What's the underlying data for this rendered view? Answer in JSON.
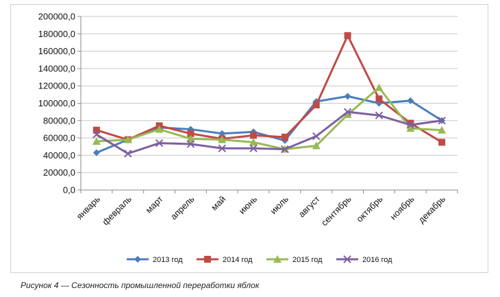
{
  "caption": "Рисунок 4 — Сезонность промышленной переработки яблок",
  "chart_data": {
    "type": "line",
    "categories": [
      "январь",
      "февраль",
      "март",
      "апрель",
      "май",
      "июнь",
      "июль",
      "август",
      "сентябрь",
      "октябрь",
      "ноябрь",
      "декабрь"
    ],
    "ylim": [
      0,
      200000
    ],
    "ytick_step": 20000,
    "ytick_labels": [
      "0,0",
      "20000,0",
      "40000,0",
      "60000,0",
      "80000,0",
      "100000,0",
      "120000,0",
      "140000,0",
      "160000,0",
      "180000,0",
      "200000,0"
    ],
    "grid": true,
    "legend_position": "bottom",
    "series": [
      {
        "name": "2013 год",
        "color": "#4a7ebb",
        "marker": "diamond",
        "values": [
          43000,
          58000,
          72000,
          70000,
          65000,
          67000,
          57000,
          102000,
          108000,
          100000,
          103000,
          80000
        ]
      },
      {
        "name": "2014 год",
        "color": "#be4b48",
        "marker": "square",
        "values": [
          69000,
          58000,
          74000,
          65000,
          59000,
          63000,
          61000,
          98000,
          178000,
          105000,
          77000,
          55000
        ]
      },
      {
        "name": "2015 год",
        "color": "#98b954",
        "marker": "triangle",
        "values": [
          56000,
          58000,
          70000,
          59000,
          58000,
          55000,
          47000,
          51000,
          87000,
          118000,
          71000,
          69000
        ]
      },
      {
        "name": "2016 год",
        "color": "#7d60a0",
        "marker": "x",
        "values": [
          64000,
          42000,
          54000,
          53000,
          48000,
          48000,
          47000,
          62000,
          90000,
          86000,
          75000,
          80000
        ]
      }
    ]
  }
}
